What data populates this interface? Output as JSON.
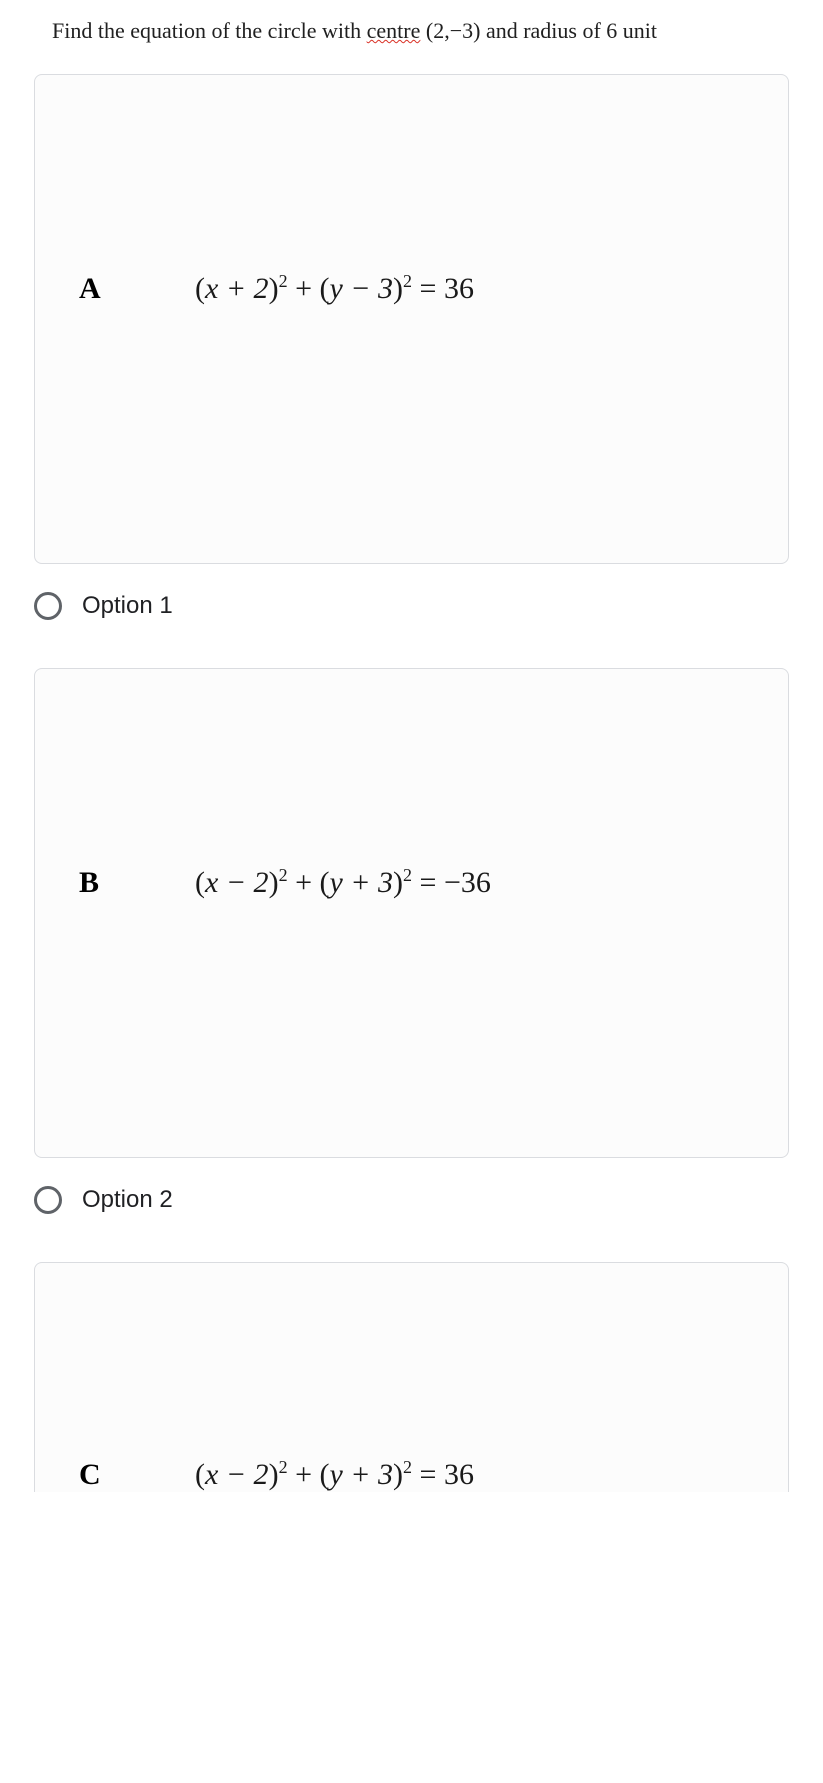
{
  "question": {
    "prefix": "Find the equation of the circle with ",
    "underlined": "centre",
    "centre": " (2,−3)",
    "suffix": " and radius of 6 unit"
  },
  "cards": {
    "a": {
      "letter": "A"
    },
    "b": {
      "letter": "B"
    },
    "c": {
      "letter": "C"
    }
  },
  "equations": {
    "a": {
      "lhs_x": "x + 2",
      "lhs_y": "y − 3",
      "rhs": "= 36"
    },
    "b": {
      "lhs_x": "x − 2",
      "lhs_y": "y + 3",
      "rhs": "= −36"
    },
    "c": {
      "lhs_x": "x − 2",
      "lhs_y": "y + 3",
      "rhs": "= 36"
    }
  },
  "options": {
    "one": "Option 1",
    "two": "Option 2"
  },
  "styling": {
    "card_border_color": "#dadce0",
    "card_bg": "#fcfcfc",
    "radio_border": "#5f6368",
    "text_color": "#202124",
    "body_width": 823,
    "question_fontsize": 22,
    "letter_fontsize": 30,
    "equation_fontsize": 30,
    "option_fontsize": 24,
    "underline_color": "#d93025"
  }
}
